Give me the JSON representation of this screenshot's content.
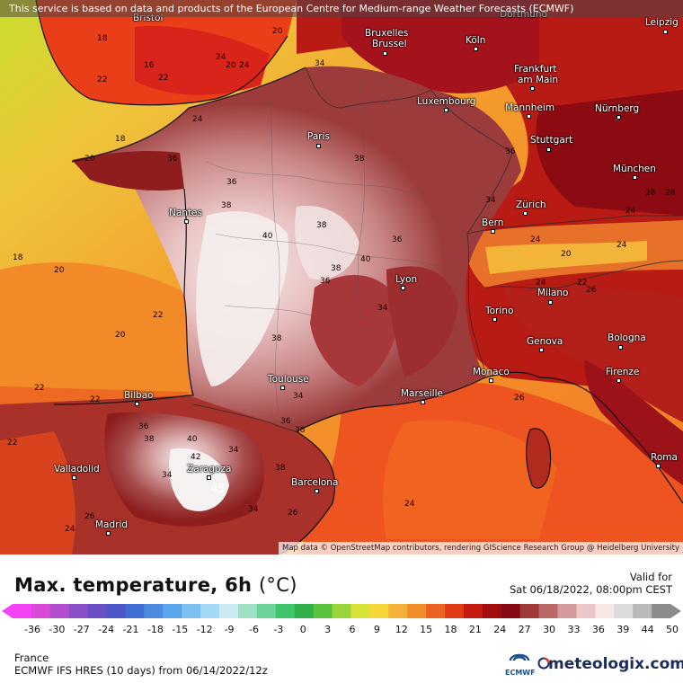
{
  "attribution": "This service is based on data and products of the European Centre for Medium-range Weather Forecasts (ECMWF)",
  "map_credit": "Map data © OpenStreetMap contributors, rendering GIScience Research Group @ Heidelberg University",
  "title": "Max. temperature, 6h",
  "unit": "(°C)",
  "valid_label": "Valid for",
  "valid_time": "Sat 06/18/2022, 08:00pm CEST",
  "region": "France",
  "model_run": "ECMWF IFS HRES (10 days) from 06/14/2022/12z",
  "ecmwf_logo_text": "ECMWF",
  "brand": "meteologix.com",
  "scale": {
    "tick_labels": [
      "-36",
      "-30",
      "-27",
      "-24",
      "-21",
      "-18",
      "-15",
      "-12",
      "-9",
      "-6",
      "-3",
      "0",
      "3",
      "6",
      "9",
      "12",
      "15",
      "18",
      "21",
      "24",
      "27",
      "30",
      "33",
      "36",
      "39",
      "44",
      "50"
    ],
    "colors": [
      "#f542f5",
      "#d64ad6",
      "#b14fcf",
      "#8b4fc9",
      "#6a4ec4",
      "#4c57c8",
      "#3f6fd6",
      "#4a8be0",
      "#5ba6ea",
      "#7cc0f0",
      "#a5d8f5",
      "#c9ecf2",
      "#9ee0c6",
      "#6bd39a",
      "#3ec46a",
      "#2fb04a",
      "#58c23a",
      "#9ad53a",
      "#d8e33a",
      "#f5d63a",
      "#f6b13a",
      "#f28c2a",
      "#ec6220",
      "#e03a18",
      "#c41a10",
      "#a30d0e",
      "#870b14",
      "#9e3a3a",
      "#b86868",
      "#d39a9a",
      "#ecc7c7",
      "#f7e6e6",
      "#dcdcdc",
      "#b9b9b9",
      "#8c8c8c"
    ]
  },
  "cities": [
    {
      "name": "Bristol"
    },
    {
      "name": "Bruxelles"
    },
    {
      "name": "Brussel"
    },
    {
      "name": "Dortmund"
    },
    {
      "name": "Leipzig"
    },
    {
      "name": "Köln"
    },
    {
      "name": "Frankfurt"
    },
    {
      "name": "am Main"
    },
    {
      "name": "Luxembourg"
    },
    {
      "name": "Mannheim"
    },
    {
      "name": "Nürnberg"
    },
    {
      "name": "Paris"
    },
    {
      "name": "Stuttgart"
    },
    {
      "name": "München"
    },
    {
      "name": "Nantes"
    },
    {
      "name": "Zürich"
    },
    {
      "name": "Bern"
    },
    {
      "name": "Lyon"
    },
    {
      "name": "Milano"
    },
    {
      "name": "Torino"
    },
    {
      "name": "Genova"
    },
    {
      "name": "Bologna"
    },
    {
      "name": "Toulouse"
    },
    {
      "name": "Monaco"
    },
    {
      "name": "Marseille"
    },
    {
      "name": "Firenze"
    },
    {
      "name": "Bilbao"
    },
    {
      "name": "Zaragoza"
    },
    {
      "name": "Valladolid"
    },
    {
      "name": "Barcelona"
    },
    {
      "name": "Roma"
    },
    {
      "name": "Madrid"
    }
  ],
  "isotherm_labels": [
    "18",
    "20",
    "22",
    "24",
    "16",
    "22",
    "20",
    "24",
    "18",
    "20",
    "18",
    "22",
    "20",
    "22",
    "20",
    "22",
    "24",
    "36",
    "34",
    "36",
    "38",
    "40",
    "38",
    "36",
    "40",
    "38",
    "36",
    "38",
    "34",
    "36",
    "38",
    "34",
    "24",
    "24",
    "26",
    "28",
    "26",
    "24",
    "22",
    "24",
    "20",
    "26",
    "34",
    "36",
    "38",
    "40",
    "42",
    "45",
    "34",
    "38",
    "26",
    "24",
    "26",
    "34",
    "36",
    "38",
    "34",
    "22",
    "24"
  ]
}
